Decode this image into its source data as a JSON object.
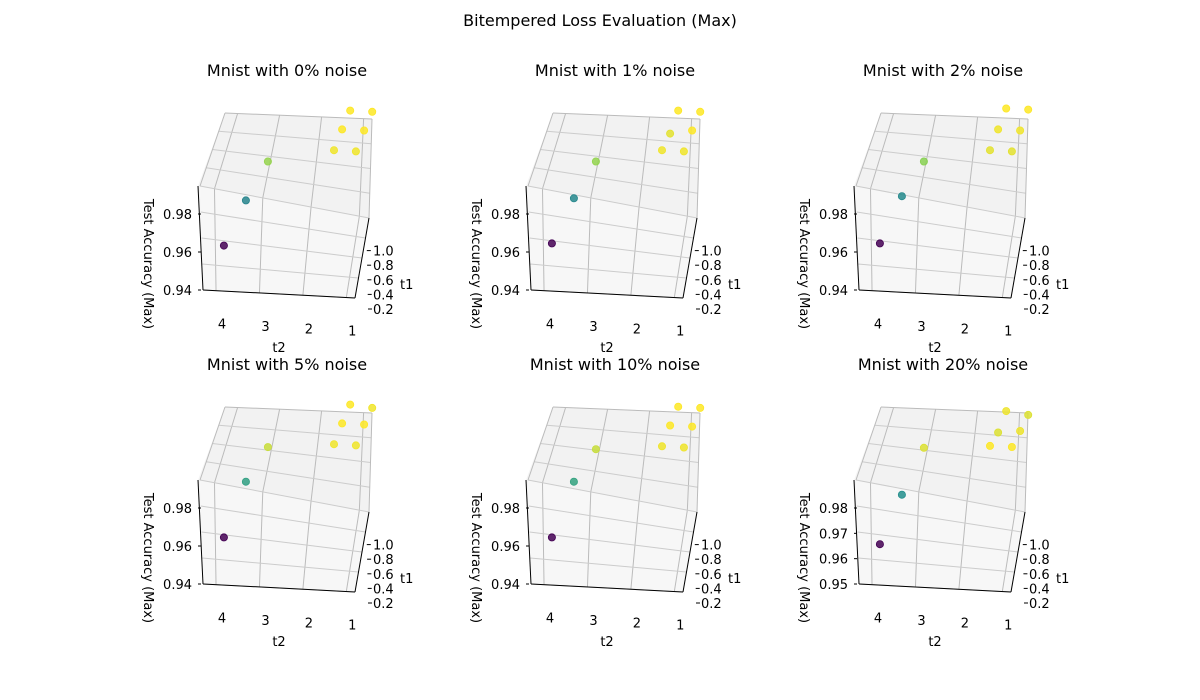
{
  "figure": {
    "title": "Bitempered Loss Evaluation (Max)"
  },
  "chart_data": [
    {
      "type": "scatter3d",
      "title": "Mnist with 0% noise",
      "xlabel": "t1",
      "ylabel": "t2",
      "zlabel": "Test Accuracy (Max)",
      "x_ticks": [
        "0.2",
        "0.4",
        "0.6",
        "0.8",
        "1.0"
      ],
      "y_ticks": [
        "1",
        "2",
        "3",
        "4"
      ],
      "z_ticks": [
        "0.94",
        "0.96",
        "0.98"
      ],
      "points": [
        {
          "t1": 0.5,
          "t2": 4.0,
          "accuracy": 0.942
        },
        {
          "t1": 0.5,
          "t2": 3.5,
          "accuracy": 0.964
        },
        {
          "t1": 0.5,
          "t2": 3.0,
          "accuracy": 0.983
        },
        {
          "t1": 0.5,
          "t2": 1.5,
          "accuracy": 0.99
        },
        {
          "t1": 0.5,
          "t2": 1.0,
          "accuracy": 0.99
        },
        {
          "t1": 0.75,
          "t2": 1.5,
          "accuracy": 0.991
        },
        {
          "t1": 0.75,
          "t2": 1.0,
          "accuracy": 0.991
        },
        {
          "t1": 1.0,
          "t2": 1.5,
          "accuracy": 0.991
        },
        {
          "t1": 1.0,
          "t2": 1.0,
          "accuracy": 0.991
        }
      ]
    },
    {
      "type": "scatter3d",
      "title": "Mnist with 1% noise",
      "xlabel": "t1",
      "ylabel": "t2",
      "zlabel": "Test Accuracy (Max)",
      "x_ticks": [
        "0.2",
        "0.4",
        "0.6",
        "0.8",
        "1.0"
      ],
      "y_ticks": [
        "1",
        "2",
        "3",
        "4"
      ],
      "z_ticks": [
        "0.94",
        "0.96",
        "0.98"
      ],
      "points": [
        {
          "t1": 0.5,
          "t2": 4.0,
          "accuracy": 0.943
        },
        {
          "t1": 0.5,
          "t2": 3.5,
          "accuracy": 0.965
        },
        {
          "t1": 0.5,
          "t2": 3.0,
          "accuracy": 0.983
        },
        {
          "t1": 0.5,
          "t2": 1.5,
          "accuracy": 0.99
        },
        {
          "t1": 0.5,
          "t2": 1.0,
          "accuracy": 0.99
        },
        {
          "t1": 0.75,
          "t2": 1.5,
          "accuracy": 0.989
        },
        {
          "t1": 0.75,
          "t2": 1.0,
          "accuracy": 0.991
        },
        {
          "t1": 1.0,
          "t2": 1.5,
          "accuracy": 0.991
        },
        {
          "t1": 1.0,
          "t2": 1.0,
          "accuracy": 0.991
        }
      ]
    },
    {
      "type": "scatter3d",
      "title": "Mnist with 2% noise",
      "xlabel": "t1",
      "ylabel": "t2",
      "zlabel": "Test Accuracy (Max)",
      "x_ticks": [
        "0.2",
        "0.4",
        "0.6",
        "0.8",
        "1.0"
      ],
      "y_ticks": [
        "1",
        "2",
        "3",
        "4"
      ],
      "z_ticks": [
        "0.94",
        "0.96",
        "0.98"
      ],
      "points": [
        {
          "t1": 0.5,
          "t2": 4.0,
          "accuracy": 0.943
        },
        {
          "t1": 0.5,
          "t2": 3.5,
          "accuracy": 0.966
        },
        {
          "t1": 0.5,
          "t2": 3.0,
          "accuracy": 0.983
        },
        {
          "t1": 0.5,
          "t2": 1.5,
          "accuracy": 0.99
        },
        {
          "t1": 0.5,
          "t2": 1.0,
          "accuracy": 0.99
        },
        {
          "t1": 0.75,
          "t2": 1.5,
          "accuracy": 0.991
        },
        {
          "t1": 0.75,
          "t2": 1.0,
          "accuracy": 0.991
        },
        {
          "t1": 1.0,
          "t2": 1.5,
          "accuracy": 0.992
        },
        {
          "t1": 1.0,
          "t2": 1.0,
          "accuracy": 0.992
        }
      ]
    },
    {
      "type": "scatter3d",
      "title": "Mnist with 5% noise",
      "xlabel": "t1",
      "ylabel": "t2",
      "zlabel": "Test Accuracy (Max)",
      "x_ticks": [
        "0.2",
        "0.4",
        "0.6",
        "0.8",
        "1.0"
      ],
      "y_ticks": [
        "1",
        "2",
        "3",
        "4"
      ],
      "z_ticks": [
        "0.94",
        "0.96",
        "0.98"
      ],
      "points": [
        {
          "t1": 0.5,
          "t2": 4.0,
          "accuracy": 0.943
        },
        {
          "t1": 0.5,
          "t2": 3.5,
          "accuracy": 0.97
        },
        {
          "t1": 0.5,
          "t2": 3.0,
          "accuracy": 0.987
        },
        {
          "t1": 0.5,
          "t2": 1.5,
          "accuracy": 0.99
        },
        {
          "t1": 0.5,
          "t2": 1.0,
          "accuracy": 0.99
        },
        {
          "t1": 0.75,
          "t2": 1.5,
          "accuracy": 0.991
        },
        {
          "t1": 0.75,
          "t2": 1.0,
          "accuracy": 0.991
        },
        {
          "t1": 1.0,
          "t2": 1.5,
          "accuracy": 0.991
        },
        {
          "t1": 1.0,
          "t2": 1.0,
          "accuracy": 0.99
        }
      ]
    },
    {
      "type": "scatter3d",
      "title": "Mnist with 10% noise",
      "xlabel": "t1",
      "ylabel": "t2",
      "zlabel": "Test Accuracy (Max)",
      "x_ticks": [
        "0.2",
        "0.4",
        "0.6",
        "0.8",
        "1.0"
      ],
      "y_ticks": [
        "1",
        "2",
        "3",
        "4"
      ],
      "z_ticks": [
        "0.94",
        "0.96",
        "0.98"
      ],
      "points": [
        {
          "t1": 0.5,
          "t2": 4.0,
          "accuracy": 0.943
        },
        {
          "t1": 0.5,
          "t2": 3.5,
          "accuracy": 0.97
        },
        {
          "t1": 0.5,
          "t2": 3.0,
          "accuracy": 0.986
        },
        {
          "t1": 0.5,
          "t2": 1.5,
          "accuracy": 0.989
        },
        {
          "t1": 0.5,
          "t2": 1.0,
          "accuracy": 0.989
        },
        {
          "t1": 0.75,
          "t2": 1.5,
          "accuracy": 0.99
        },
        {
          "t1": 0.75,
          "t2": 1.0,
          "accuracy": 0.99
        },
        {
          "t1": 1.0,
          "t2": 1.5,
          "accuracy": 0.99
        },
        {
          "t1": 1.0,
          "t2": 1.0,
          "accuracy": 0.99
        }
      ]
    },
    {
      "type": "scatter3d",
      "title": "Mnist with 20% noise",
      "xlabel": "t1",
      "ylabel": "t2",
      "zlabel": "Test Accuracy (Max)",
      "x_ticks": [
        "0.2",
        "0.4",
        "0.6",
        "0.8",
        "1.0"
      ],
      "y_ticks": [
        "1",
        "2",
        "3",
        "4"
      ],
      "z_ticks": [
        "0.95",
        "0.96",
        "0.97",
        "0.98"
      ],
      "points": [
        {
          "t1": 0.5,
          "t2": 4.0,
          "accuracy": 0.951
        },
        {
          "t1": 0.5,
          "t2": 3.5,
          "accuracy": 0.97
        },
        {
          "t1": 0.5,
          "t2": 3.0,
          "accuracy": 0.988
        },
        {
          "t1": 0.5,
          "t2": 1.5,
          "accuracy": 0.99
        },
        {
          "t1": 0.5,
          "t2": 1.0,
          "accuracy": 0.99
        },
        {
          "t1": 0.75,
          "t2": 1.5,
          "accuracy": 0.988
        },
        {
          "t1": 0.75,
          "t2": 1.0,
          "accuracy": 0.989
        },
        {
          "t1": 1.0,
          "t2": 1.5,
          "accuracy": 0.989
        },
        {
          "t1": 1.0,
          "t2": 1.0,
          "accuracy": 0.988
        }
      ]
    }
  ]
}
